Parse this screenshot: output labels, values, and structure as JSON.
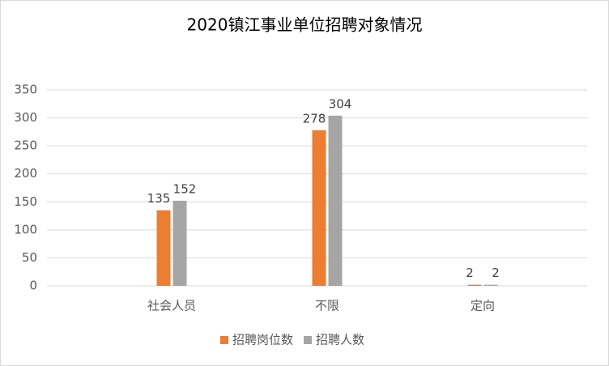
{
  "chart_data": {
    "type": "bar",
    "title": "2020镇江事业单位招聘对象情况",
    "categories": [
      "社会人员",
      "不限",
      "定向"
    ],
    "series": [
      {
        "name": "招聘岗位数",
        "color": "#ed7d31",
        "values": [
          135,
          278,
          2
        ]
      },
      {
        "name": "招聘人数",
        "color": "#a5a5a5",
        "values": [
          152,
          304,
          2
        ]
      }
    ],
    "ylim": [
      0,
      350
    ],
    "yticks": [
      0,
      50,
      100,
      150,
      200,
      250,
      300,
      350
    ],
    "grid": true,
    "legend": "bottom"
  }
}
